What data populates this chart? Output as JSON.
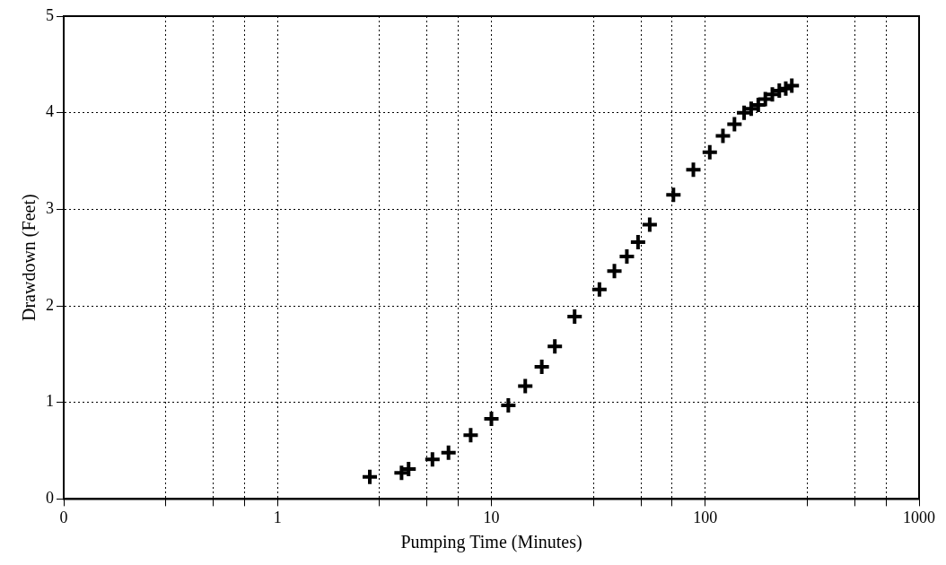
{
  "chart_data": {
    "type": "scatter",
    "xlabel": "Pumping Time (Minutes)",
    "ylabel": "Drawdown (Feet)",
    "log": "x",
    "grid": true,
    "marker": "cross",
    "legend": false,
    "xlim": [
      0.1,
      1000
    ],
    "xticks": [
      {
        "value": 0.1,
        "label": "0"
      },
      {
        "value": 0.3,
        "label": null
      },
      {
        "value": 0.5,
        "label": null
      },
      {
        "value": 0.7,
        "label": null
      },
      1,
      {
        "value": 3,
        "label": null
      },
      {
        "value": 5,
        "label": null
      },
      {
        "value": 7,
        "label": null
      },
      10,
      {
        "value": 30,
        "label": null
      },
      {
        "value": 50,
        "label": null
      },
      {
        "value": 70,
        "label": null
      },
      100,
      {
        "value": 300,
        "label": null
      },
      {
        "value": 500,
        "label": null
      },
      {
        "value": 700,
        "label": null
      },
      1000
    ],
    "ylim": [
      0,
      5
    ],
    "yticks": [
      0,
      1,
      2,
      3,
      4,
      5
    ],
    "series": [
      {
        "color": "#000000",
        "x": [
          2.7,
          3.8,
          4.1,
          5.3,
          6.3,
          8.0,
          10,
          12,
          14.4,
          17.2,
          19.8,
          24.5,
          32,
          37.6,
          43,
          48.5,
          55,
          71,
          88,
          105,
          121,
          137,
          152,
          164,
          177,
          191,
          206,
          222,
          238,
          254
        ],
        "values": [
          0.23,
          0.27,
          0.31,
          0.41,
          0.48,
          0.66,
          0.83,
          0.97,
          1.17,
          1.37,
          1.58,
          1.89,
          2.17,
          2.36,
          2.51,
          2.66,
          2.84,
          3.15,
          3.41,
          3.59,
          3.76,
          3.88,
          4.0,
          4.04,
          4.08,
          4.14,
          4.19,
          4.23,
          4.25,
          4.28
        ]
      }
    ]
  }
}
